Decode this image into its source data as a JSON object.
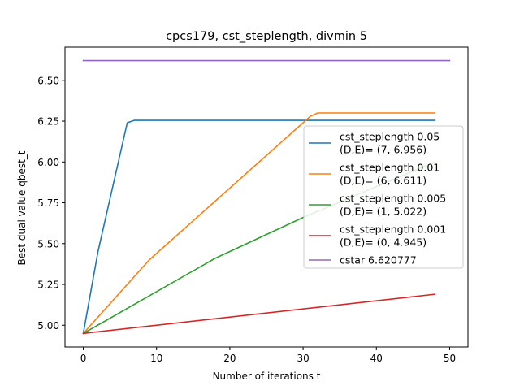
{
  "chart_data": {
    "type": "line",
    "title": "cpcs179, cst_steplength, divmin 5",
    "xlabel": "Number of iterations t",
    "ylabel": "Best dual value qbest_t",
    "xlim": [
      -2.5,
      52.5
    ],
    "ylim": [
      4.867,
      6.703
    ],
    "xticks": [
      0,
      10,
      20,
      30,
      40,
      50
    ],
    "xtick_labels": [
      "0",
      "10",
      "20",
      "30",
      "40",
      "50"
    ],
    "yticks": [
      5.0,
      5.25,
      5.5,
      5.75,
      6.0,
      6.25,
      6.5
    ],
    "ytick_labels": [
      "5.00",
      "5.25",
      "5.50",
      "5.75",
      "6.00",
      "6.25",
      "6.50"
    ],
    "grid": false,
    "legend_position": "center-right",
    "series": [
      {
        "name": "cst_steplength 0.05",
        "name_line2": "(D,E)= (7, 6.956)",
        "color": "#1f77b4",
        "x": [
          0,
          2,
          6,
          7,
          48
        ],
        "y": [
          4.95,
          5.45,
          6.24,
          6.255,
          6.255
        ]
      },
      {
        "name": "cst_steplength 0.01",
        "name_line2": "(D,E)= (6, 6.611)",
        "color": "#ff7f0e",
        "x": [
          0,
          9,
          31,
          32,
          48
        ],
        "y": [
          4.95,
          5.4,
          6.28,
          6.3,
          6.3
        ]
      },
      {
        "name": "cst_steplength 0.005",
        "name_line2": "(D,E)= (1, 5.022)",
        "color": "#2ca02c",
        "x": [
          0,
          18,
          30,
          48
        ],
        "y": [
          4.95,
          5.41,
          5.66,
          6.0
        ]
      },
      {
        "name": "cst_steplength 0.001",
        "name_line2": "(D,E)= (0, 4.945)",
        "color": "#d62728",
        "x": [
          0,
          48
        ],
        "y": [
          4.95,
          5.19
        ]
      },
      {
        "name": "cstar 6.620777",
        "name_line2": "",
        "color": "#9467bd",
        "x": [
          0,
          50
        ],
        "y": [
          6.620777,
          6.620777
        ]
      }
    ]
  }
}
